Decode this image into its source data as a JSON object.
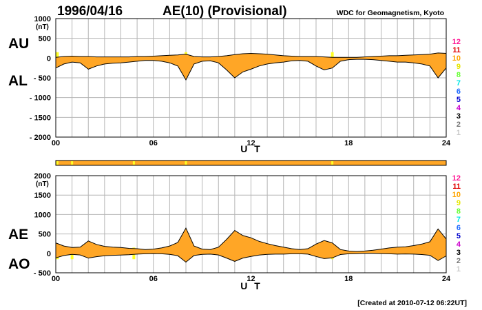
{
  "header": {
    "date": "1996/04/16",
    "title": "AE(10) (Provisional)",
    "source": "WDC for Geomagnetism, Kyoto",
    "created": "[Created at 2010-07-12 06:22UT]"
  },
  "colors": {
    "fill": "#ffa626",
    "highlight": "#ffff26",
    "grid": "#b4b4b4",
    "line": "#000000"
  },
  "legend": [
    {
      "label": "12",
      "color": "#ff1493"
    },
    {
      "label": "11",
      "color": "#e00000"
    },
    {
      "label": "10",
      "color": "#ffa500"
    },
    {
      "label": "9",
      "color": "#e6e600"
    },
    {
      "label": "8",
      "color": "#66ff33"
    },
    {
      "label": "7",
      "color": "#00e5e5"
    },
    {
      "label": "6",
      "color": "#1e6bff"
    },
    {
      "label": "5",
      "color": "#0000cc"
    },
    {
      "label": "4",
      "color": "#cc00cc"
    },
    {
      "label": "3",
      "color": "#000000"
    },
    {
      "label": "2",
      "color": "#777777"
    },
    {
      "label": "1",
      "color": "#c8c8c8"
    }
  ],
  "chart_data": [
    {
      "type": "area",
      "name": "AU/AL",
      "label_upper": "AU",
      "label_lower": "AL",
      "unit": "(nT)",
      "xlabel": "U T",
      "xlim": [
        0,
        24
      ],
      "xticks": [
        "00",
        "06",
        "12",
        "18",
        "24"
      ],
      "ylim": [
        -2000,
        1000
      ],
      "yticks": [
        "1000",
        "500",
        "0",
        "- 500",
        "- 1000",
        "- 1500",
        "- 2000"
      ],
      "highlight_hours": [
        0.1,
        8.0,
        17.0
      ],
      "series": [
        {
          "name": "AU",
          "x": [
            0,
            0.5,
            1,
            1.5,
            2,
            2.5,
            3,
            3.5,
            4,
            4.5,
            5,
            5.5,
            6,
            6.5,
            7,
            7.5,
            8,
            8.5,
            9,
            9.5,
            10,
            10.5,
            11,
            11.5,
            12,
            12.5,
            13,
            13.5,
            14,
            14.5,
            15,
            15.5,
            16,
            16.5,
            17,
            17.5,
            18,
            18.5,
            19,
            19.5,
            20,
            20.5,
            21,
            21.5,
            22,
            22.5,
            23,
            23.5,
            24
          ],
          "values": [
            20,
            40,
            50,
            40,
            40,
            30,
            30,
            30,
            30,
            30,
            40,
            40,
            50,
            60,
            70,
            80,
            100,
            40,
            30,
            30,
            40,
            60,
            90,
            110,
            120,
            110,
            100,
            80,
            60,
            50,
            40,
            40,
            40,
            30,
            20,
            20,
            20,
            20,
            30,
            40,
            50,
            60,
            60,
            70,
            80,
            90,
            100,
            130,
            120
          ]
        },
        {
          "name": "AL",
          "x": [
            0,
            0.5,
            1,
            1.5,
            2,
            2.5,
            3,
            3.5,
            4,
            4.5,
            5,
            5.5,
            6,
            6.5,
            7,
            7.5,
            8,
            8.5,
            9,
            9.5,
            10,
            10.5,
            11,
            11.5,
            12,
            12.5,
            13,
            13.5,
            14,
            14.5,
            15,
            15.5,
            16,
            16.5,
            17,
            17.5,
            18,
            18.5,
            19,
            19.5,
            20,
            20.5,
            21,
            21.5,
            22,
            22.5,
            23,
            23.5,
            24
          ],
          "values": [
            -250,
            -150,
            -100,
            -120,
            -280,
            -200,
            -150,
            -130,
            -120,
            -100,
            -80,
            -60,
            -60,
            -80,
            -120,
            -200,
            -550,
            -150,
            -80,
            -70,
            -120,
            -300,
            -500,
            -350,
            -280,
            -200,
            -150,
            -120,
            -100,
            -70,
            -60,
            -80,
            -200,
            -300,
            -250,
            -80,
            -40,
            -30,
            -30,
            -40,
            -60,
            -80,
            -100,
            -100,
            -120,
            -150,
            -200,
            -500,
            -250
          ]
        }
      ]
    },
    {
      "type": "area",
      "name": "AE/AO",
      "label_upper": "AE",
      "label_lower": "AO",
      "unit": "(nT)",
      "xlabel": "U T",
      "xlim": [
        0,
        24
      ],
      "xticks": [
        "00",
        "06",
        "12",
        "18",
        "24"
      ],
      "ylim": [
        -500,
        2000
      ],
      "yticks": [
        "2000",
        "1500",
        "1000",
        "500",
        "0",
        "- 500"
      ],
      "highlight_hours": [
        0.1,
        1.0,
        4.8,
        8.0,
        17.0
      ],
      "series": [
        {
          "name": "AE",
          "x": [
            0,
            0.5,
            1,
            1.5,
            2,
            2.5,
            3,
            3.5,
            4,
            4.5,
            5,
            5.5,
            6,
            6.5,
            7,
            7.5,
            8,
            8.5,
            9,
            9.5,
            10,
            10.5,
            11,
            11.5,
            12,
            12.5,
            13,
            13.5,
            14,
            14.5,
            15,
            15.5,
            16,
            16.5,
            17,
            17.5,
            18,
            18.5,
            19,
            19.5,
            20,
            20.5,
            21,
            21.5,
            22,
            22.5,
            23,
            23.5,
            24
          ],
          "values": [
            270,
            190,
            150,
            160,
            320,
            230,
            180,
            160,
            150,
            130,
            120,
            100,
            110,
            140,
            190,
            280,
            650,
            190,
            110,
            100,
            160,
            360,
            590,
            460,
            400,
            310,
            250,
            200,
            160,
            120,
            100,
            120,
            240,
            330,
            270,
            100,
            60,
            50,
            60,
            80,
            110,
            140,
            160,
            170,
            200,
            240,
            300,
            630,
            370
          ]
        },
        {
          "name": "AO",
          "x": [
            0,
            0.5,
            1,
            1.5,
            2,
            2.5,
            3,
            3.5,
            4,
            4.5,
            5,
            5.5,
            6,
            6.5,
            7,
            7.5,
            8,
            8.5,
            9,
            9.5,
            10,
            10.5,
            11,
            11.5,
            12,
            12.5,
            13,
            13.5,
            14,
            14.5,
            15,
            15.5,
            16,
            16.5,
            17,
            17.5,
            18,
            18.5,
            19,
            19.5,
            20,
            20.5,
            21,
            21.5,
            22,
            22.5,
            23,
            23.5,
            24
          ],
          "values": [
            -115,
            -55,
            -25,
            -40,
            -120,
            -85,
            -60,
            -50,
            -45,
            -35,
            -20,
            -10,
            -5,
            -10,
            -25,
            -60,
            -225,
            -55,
            -25,
            -20,
            -40,
            -120,
            -205,
            -120,
            -80,
            -45,
            -25,
            -20,
            -20,
            -10,
            -10,
            -20,
            -80,
            -135,
            -115,
            -30,
            -10,
            -5,
            0,
            0,
            -5,
            -10,
            -20,
            -15,
            -20,
            -30,
            -50,
            -185,
            -65
          ]
        }
      ]
    }
  ]
}
